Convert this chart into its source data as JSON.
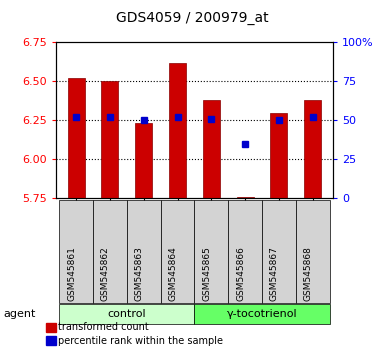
{
  "title": "GDS4059 / 200979_at",
  "samples": [
    "GSM545861",
    "GSM545862",
    "GSM545863",
    "GSM545864",
    "GSM545865",
    "GSM545866",
    "GSM545867",
    "GSM545868"
  ],
  "bar_values": [
    6.52,
    6.5,
    6.23,
    6.62,
    6.38,
    5.76,
    6.3,
    6.38
  ],
  "percentile_ranks": [
    52,
    52,
    50,
    52,
    51,
    35,
    50,
    52
  ],
  "y_min": 5.75,
  "y_max": 6.75,
  "y2_min": 0,
  "y2_max": 100,
  "y_ticks": [
    5.75,
    6.0,
    6.25,
    6.5,
    6.75
  ],
  "y2_ticks": [
    0,
    25,
    50,
    75,
    100
  ],
  "y2_tick_labels": [
    "0",
    "25",
    "50",
    "75",
    "100%"
  ],
  "bar_color": "#cc0000",
  "dot_color": "#0000cc",
  "bar_bottom": 5.75,
  "groups": [
    {
      "label": "control",
      "samples": [
        0,
        1,
        2,
        3
      ],
      "color": "#ccffcc"
    },
    {
      "label": "γ-tocotrienol",
      "samples": [
        4,
        5,
        6,
        7
      ],
      "color": "#66ff66"
    }
  ],
  "agent_label": "agent",
  "legend_items": [
    {
      "color": "#cc0000",
      "label": "transformed count"
    },
    {
      "color": "#0000cc",
      "label": "percentile rank within the sample"
    }
  ],
  "grid_linestyle": ":",
  "grid_linewidth": 0.8,
  "bar_width": 0.5,
  "xlim": [
    -0.6,
    7.6
  ],
  "sample_bg_color": "#d3d3d3",
  "plot_bg": "#ffffff",
  "fig_bg": "#ffffff"
}
